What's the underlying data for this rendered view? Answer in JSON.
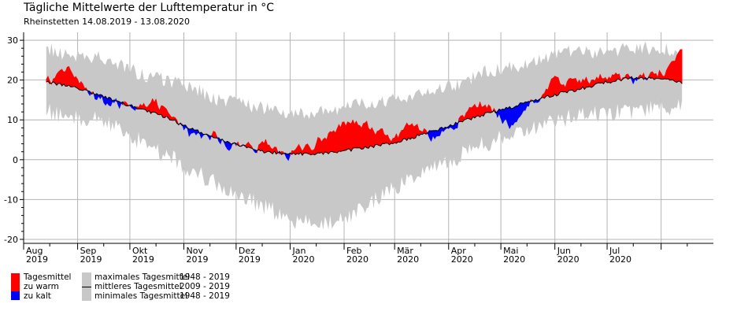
{
  "chart_data": {
    "type": "area",
    "title": "Tägliche Mittelwerte der Lufttemperatur in °C",
    "subtitle": "Rheinstetten  14.08.2019 - 13.08.2020",
    "ylim": [
      -21,
      32
    ],
    "yticks": [
      -20,
      -10,
      0,
      10,
      20,
      30
    ],
    "grid": true,
    "x_months": [
      {
        "label": "Aug",
        "year": "2019"
      },
      {
        "label": "Sep",
        "year": "2019"
      },
      {
        "label": "Okt",
        "year": "2019"
      },
      {
        "label": "Nov",
        "year": "2019"
      },
      {
        "label": "Dez",
        "year": "2019"
      },
      {
        "label": "Jan",
        "year": "2020"
      },
      {
        "label": "Feb",
        "year": "2020"
      },
      {
        "label": "Mär",
        "year": "2020"
      },
      {
        "label": "Apr",
        "year": "2020"
      },
      {
        "label": "Mai",
        "year": "2020"
      },
      {
        "label": "Jun",
        "year": "2020"
      },
      {
        "label": "Jul",
        "year": "2020"
      }
    ],
    "x_dates": [
      "2019-08-14",
      "2019-08-28",
      "2019-09-11",
      "2019-09-25",
      "2019-10-09",
      "2019-10-23",
      "2019-11-06",
      "2019-11-20",
      "2019-12-04",
      "2019-12-18",
      "2020-01-01",
      "2020-01-15",
      "2020-01-29",
      "2020-02-12",
      "2020-02-26",
      "2020-03-11",
      "2020-03-25",
      "2020-04-08",
      "2020-04-22",
      "2020-05-06",
      "2020-05-20",
      "2020-06-03",
      "2020-06-17",
      "2020-07-01",
      "2020-07-15",
      "2020-07-29",
      "2020-08-13"
    ],
    "series": [
      {
        "name": "maximales Tagesmittel",
        "years": "1948 - 2019",
        "color": "#c8c8c8",
        "values": [
          28,
          26,
          26,
          24,
          21,
          20,
          18,
          15,
          14,
          13,
          12,
          12,
          13,
          14,
          15,
          16,
          18,
          19,
          22,
          23,
          25,
          27,
          27,
          27,
          28,
          28,
          27
        ]
      },
      {
        "name": "minimales Tagesmittel",
        "years": "1948 - 2019",
        "color": "#c8c8c8",
        "values": [
          12,
          11,
          10,
          8,
          4,
          1,
          -3,
          -6,
          -9,
          -12,
          -15,
          -16,
          -15,
          -12,
          -8,
          -5,
          -2,
          1,
          4,
          6,
          8,
          10,
          11,
          12,
          12,
          13,
          13
        ]
      },
      {
        "name": "mittleres Tagesmittel",
        "years": "2009 - 2019",
        "color": "#000000",
        "values": [
          19.5,
          18.5,
          16.5,
          14.5,
          12.5,
          10.5,
          7.5,
          5.5,
          3.5,
          2,
          1.5,
          1.5,
          2,
          3,
          4,
          5.5,
          7.5,
          9.5,
          11.5,
          13,
          15,
          16.5,
          18,
          19.5,
          20.5,
          20.5,
          19.5
        ]
      },
      {
        "name": "Tagesmittel",
        "color": "#000000",
        "values": [
          19,
          23,
          15,
          14,
          15,
          13,
          5,
          6,
          3,
          4,
          1,
          4,
          9,
          9,
          5,
          8,
          5,
          11,
          14,
          9,
          15,
          20,
          19,
          21,
          20,
          21,
          26
        ]
      }
    ],
    "legend": {
      "tagesmittel": "Tagesmittel",
      "warm": "zu warm",
      "cold": "zu kalt",
      "warm_color": "#ff0000",
      "cold_color": "#0000ff",
      "items": [
        {
          "label": "maximales Tagesmittel",
          "years": "1948 - 2019"
        },
        {
          "label": "mittleres Tagesmittel",
          "years": "2009 - 2019"
        },
        {
          "label": "minimales Tagesmittel",
          "years": "1948 - 2019"
        }
      ]
    }
  }
}
